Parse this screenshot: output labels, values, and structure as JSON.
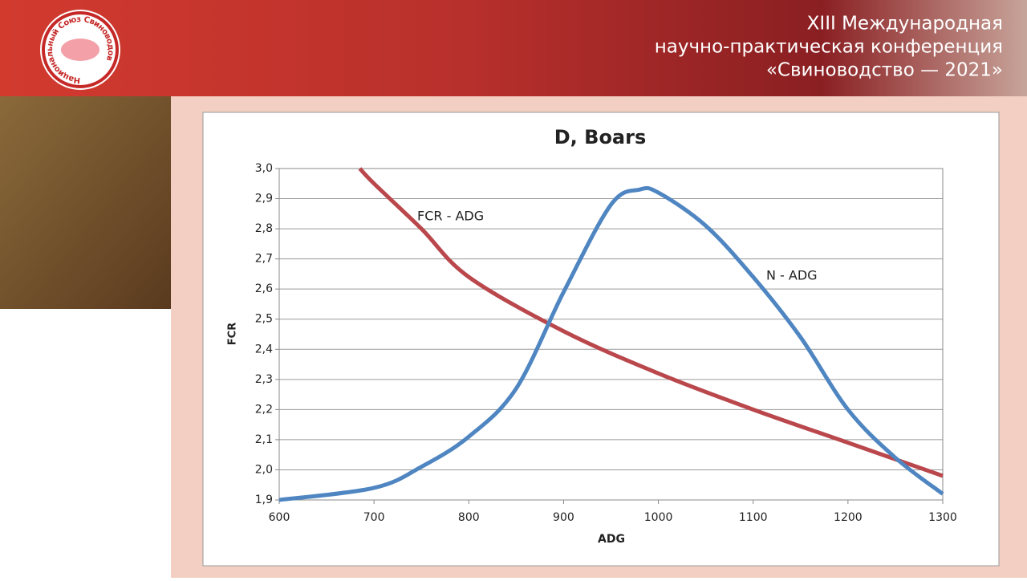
{
  "header": {
    "lines": [
      "XIII Международная",
      "научно-практическая конференция",
      "«Свиноводство — 2021»"
    ],
    "logo_text": "Национальный Союз Свиноводов"
  },
  "chart_data": {
    "type": "line",
    "title": "D, Boars",
    "x_label": "ADG",
    "y_label": "FCR",
    "xlim": [
      600,
      1300
    ],
    "xticks": [
      600,
      700,
      800,
      900,
      1000,
      1100,
      1200,
      1300
    ],
    "ylim": [
      1.9,
      3.0
    ],
    "yticks": [
      {
        "value": 1.9,
        "label": "1,9"
      },
      {
        "value": 2.0,
        "label": "2,0"
      },
      {
        "value": 2.1,
        "label": "2,1"
      },
      {
        "value": 2.2,
        "label": "2,2"
      },
      {
        "value": 2.3,
        "label": "2,3"
      },
      {
        "value": 2.4,
        "label": "2,4"
      },
      {
        "value": 2.5,
        "label": "2,5"
      },
      {
        "value": 2.6,
        "label": "2,6"
      },
      {
        "value": 2.7,
        "label": "2,7"
      },
      {
        "value": 2.8,
        "label": "2,8"
      },
      {
        "value": 2.9,
        "label": "2,9"
      },
      {
        "value": 3.0,
        "label": "3,0"
      }
    ],
    "grid": true,
    "series": [
      {
        "name": "FCR - ADG",
        "color": "#b9474c",
        "x": [
          685,
          700,
          750,
          800,
          900,
          1000,
          1100,
          1200,
          1300
        ],
        "values": [
          3.0,
          2.95,
          2.8,
          2.64,
          2.46,
          2.32,
          2.2,
          2.09,
          1.98
        ]
      },
      {
        "name": "N - ADG",
        "color": "#4f86c1",
        "x": [
          600,
          700,
          750,
          800,
          850,
          900,
          950,
          980,
          1000,
          1050,
          1100,
          1150,
          1200,
          1250,
          1300
        ],
        "values": [
          1.9,
          1.94,
          2.01,
          2.11,
          2.27,
          2.59,
          2.88,
          2.93,
          2.92,
          2.81,
          2.64,
          2.44,
          2.2,
          2.04,
          1.92
        ]
      }
    ]
  }
}
